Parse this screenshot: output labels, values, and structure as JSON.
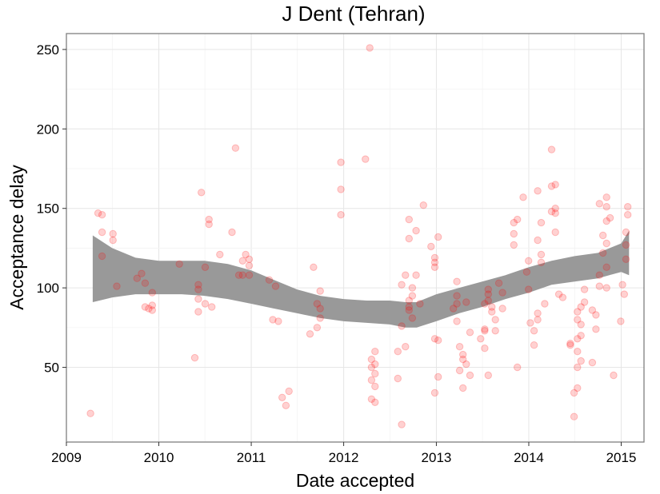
{
  "chart_data": {
    "type": "scatter",
    "title": "J Dent (Tehran)",
    "xlabel": "Date accepted",
    "ylabel": "Acceptance delay",
    "xlim": [
      "2009-01-01",
      "2015-04-01"
    ],
    "ylim": [
      3,
      260
    ],
    "x_ticks": [
      "2009",
      "2010",
      "2011",
      "2012",
      "2013",
      "2014",
      "2015"
    ],
    "y_ticks": [
      "50",
      "100",
      "150",
      "200",
      "250"
    ],
    "grid": true,
    "point_color": "#ff0000",
    "band_color": "#999999",
    "points": [
      {
        "x": "2009-04-06",
        "y": 21
      },
      {
        "x": "2009-05-06",
        "y": 147
      },
      {
        "x": "2009-05-22",
        "y": 146
      },
      {
        "x": "2009-05-22",
        "y": 135
      },
      {
        "x": "2009-05-22",
        "y": 120
      },
      {
        "x": "2009-07-04",
        "y": 134
      },
      {
        "x": "2009-07-04",
        "y": 130
      },
      {
        "x": "2009-07-19",
        "y": 101
      },
      {
        "x": "2009-10-07",
        "y": 106
      },
      {
        "x": "2009-10-25",
        "y": 109
      },
      {
        "x": "2009-11-08",
        "y": 103
      },
      {
        "x": "2009-11-08",
        "y": 88
      },
      {
        "x": "2009-11-22",
        "y": 87
      },
      {
        "x": "2009-12-06",
        "y": 89
      },
      {
        "x": "2009-12-06",
        "y": 86
      },
      {
        "x": "2009-12-06",
        "y": 97
      },
      {
        "x": "2010-03-23",
        "y": 115
      },
      {
        "x": "2010-05-23",
        "y": 56
      },
      {
        "x": "2010-06-06",
        "y": 102
      },
      {
        "x": "2010-06-06",
        "y": 99
      },
      {
        "x": "2010-06-06",
        "y": 93
      },
      {
        "x": "2010-06-06",
        "y": 85
      },
      {
        "x": "2010-06-18",
        "y": 160
      },
      {
        "x": "2010-07-03",
        "y": 90
      },
      {
        "x": "2010-07-03",
        "y": 113
      },
      {
        "x": "2010-07-18",
        "y": 143
      },
      {
        "x": "2010-07-18",
        "y": 140
      },
      {
        "x": "2010-07-29",
        "y": 88
      },
      {
        "x": "2010-08-30",
        "y": 121
      },
      {
        "x": "2010-10-17",
        "y": 135
      },
      {
        "x": "2010-10-31",
        "y": 188
      },
      {
        "x": "2010-11-13",
        "y": 108
      },
      {
        "x": "2010-11-28",
        "y": 117
      },
      {
        "x": "2010-11-28",
        "y": 108
      },
      {
        "x": "2010-12-10",
        "y": 121
      },
      {
        "x": "2010-12-24",
        "y": 114
      },
      {
        "x": "2010-12-24",
        "y": 108
      },
      {
        "x": "2010-12-24",
        "y": 118
      },
      {
        "x": "2011-03-13",
        "y": 105
      },
      {
        "x": "2011-03-27",
        "y": 80
      },
      {
        "x": "2011-04-07",
        "y": 101
      },
      {
        "x": "2011-04-18",
        "y": 79
      },
      {
        "x": "2011-05-03",
        "y": 31
      },
      {
        "x": "2011-05-18",
        "y": 26
      },
      {
        "x": "2011-05-30",
        "y": 35
      },
      {
        "x": "2011-08-21",
        "y": 71
      },
      {
        "x": "2011-09-04",
        "y": 113
      },
      {
        "x": "2011-09-18",
        "y": 90
      },
      {
        "x": "2011-09-18",
        "y": 75
      },
      {
        "x": "2011-09-30",
        "y": 87
      },
      {
        "x": "2011-09-30",
        "y": 98
      },
      {
        "x": "2011-09-30",
        "y": 81
      },
      {
        "x": "2011-12-21",
        "y": 179
      },
      {
        "x": "2011-12-21",
        "y": 162
      },
      {
        "x": "2011-12-21",
        "y": 146
      },
      {
        "x": "2012-03-27",
        "y": 181
      },
      {
        "x": "2012-04-13",
        "y": 251
      },
      {
        "x": "2012-04-20",
        "y": 55
      },
      {
        "x": "2012-04-20",
        "y": 50
      },
      {
        "x": "2012-04-20",
        "y": 42
      },
      {
        "x": "2012-04-20",
        "y": 30
      },
      {
        "x": "2012-05-04",
        "y": 60
      },
      {
        "x": "2012-05-04",
        "y": 52
      },
      {
        "x": "2012-05-04",
        "y": 46
      },
      {
        "x": "2012-05-04",
        "y": 38
      },
      {
        "x": "2012-05-04",
        "y": 28
      },
      {
        "x": "2012-08-02",
        "y": 60
      },
      {
        "x": "2012-08-02",
        "y": 43
      },
      {
        "x": "2012-08-17",
        "y": 14
      },
      {
        "x": "2012-08-17",
        "y": 76
      },
      {
        "x": "2012-08-17",
        "y": 102
      },
      {
        "x": "2012-09-01",
        "y": 63
      },
      {
        "x": "2012-09-01",
        "y": 108
      },
      {
        "x": "2012-09-15",
        "y": 143
      },
      {
        "x": "2012-09-15",
        "y": 131
      },
      {
        "x": "2012-09-15",
        "y": 92
      },
      {
        "x": "2012-09-15",
        "y": 88
      },
      {
        "x": "2012-09-15",
        "y": 86
      },
      {
        "x": "2012-09-28",
        "y": 100
      },
      {
        "x": "2012-09-28",
        "y": 95
      },
      {
        "x": "2012-09-28",
        "y": 81
      },
      {
        "x": "2012-10-13",
        "y": 108
      },
      {
        "x": "2012-10-13",
        "y": 136
      },
      {
        "x": "2012-10-28",
        "y": 90
      },
      {
        "x": "2012-11-11",
        "y": 152
      },
      {
        "x": "2012-12-11",
        "y": 126
      },
      {
        "x": "2012-12-26",
        "y": 119
      },
      {
        "x": "2012-12-26",
        "y": 116
      },
      {
        "x": "2012-12-26",
        "y": 113
      },
      {
        "x": "2012-12-26",
        "y": 68
      },
      {
        "x": "2012-12-26",
        "y": 34
      },
      {
        "x": "2013-01-08",
        "y": 44
      },
      {
        "x": "2013-01-08",
        "y": 67
      },
      {
        "x": "2013-01-08",
        "y": 132
      },
      {
        "x": "2013-03-09",
        "y": 87
      },
      {
        "x": "2013-03-23",
        "y": 104
      },
      {
        "x": "2013-03-23",
        "y": 95
      },
      {
        "x": "2013-03-23",
        "y": 90
      },
      {
        "x": "2013-03-23",
        "y": 79
      },
      {
        "x": "2013-04-03",
        "y": 63
      },
      {
        "x": "2013-04-03",
        "y": 48
      },
      {
        "x": "2013-04-16",
        "y": 58
      },
      {
        "x": "2013-04-16",
        "y": 55
      },
      {
        "x": "2013-04-16",
        "y": 37
      },
      {
        "x": "2013-04-29",
        "y": 91
      },
      {
        "x": "2013-04-29",
        "y": 52
      },
      {
        "x": "2013-05-14",
        "y": 45
      },
      {
        "x": "2013-05-14",
        "y": 72
      },
      {
        "x": "2013-06-25",
        "y": 68
      },
      {
        "x": "2013-07-11",
        "y": 62
      },
      {
        "x": "2013-07-11",
        "y": 90
      },
      {
        "x": "2013-07-11",
        "y": 74
      },
      {
        "x": "2013-07-11",
        "y": 73
      },
      {
        "x": "2013-07-25",
        "y": 45
      },
      {
        "x": "2013-07-25",
        "y": 99
      },
      {
        "x": "2013-07-25",
        "y": 96
      },
      {
        "x": "2013-07-25",
        "y": 92
      },
      {
        "x": "2013-08-08",
        "y": 88
      },
      {
        "x": "2013-08-08",
        "y": 85
      },
      {
        "x": "2013-08-22",
        "y": 80
      },
      {
        "x": "2013-08-22",
        "y": 73
      },
      {
        "x": "2013-09-05",
        "y": 103
      },
      {
        "x": "2013-09-19",
        "y": 97
      },
      {
        "x": "2013-09-19",
        "y": 87
      },
      {
        "x": "2013-11-03",
        "y": 127
      },
      {
        "x": "2013-11-03",
        "y": 134
      },
      {
        "x": "2013-11-03",
        "y": 141
      },
      {
        "x": "2013-11-17",
        "y": 50
      },
      {
        "x": "2013-11-17",
        "y": 143
      },
      {
        "x": "2013-12-10",
        "y": 157
      },
      {
        "x": "2013-12-24",
        "y": 110
      },
      {
        "x": "2013-12-31",
        "y": 117
      },
      {
        "x": "2013-12-31",
        "y": 99
      },
      {
        "x": "2014-01-07",
        "y": 78
      },
      {
        "x": "2014-01-22",
        "y": 73
      },
      {
        "x": "2014-01-22",
        "y": 64
      },
      {
        "x": "2014-02-05",
        "y": 161
      },
      {
        "x": "2014-02-05",
        "y": 130
      },
      {
        "x": "2014-02-05",
        "y": 84
      },
      {
        "x": "2014-02-05",
        "y": 80
      },
      {
        "x": "2014-02-19",
        "y": 141
      },
      {
        "x": "2014-02-19",
        "y": 121
      },
      {
        "x": "2014-02-19",
        "y": 116
      },
      {
        "x": "2014-03-05",
        "y": 90
      },
      {
        "x": "2014-04-01",
        "y": 187
      },
      {
        "x": "2014-04-01",
        "y": 164
      },
      {
        "x": "2014-04-01",
        "y": 148
      },
      {
        "x": "2014-04-16",
        "y": 165
      },
      {
        "x": "2014-04-16",
        "y": 150
      },
      {
        "x": "2014-04-16",
        "y": 147
      },
      {
        "x": "2014-04-16",
        "y": 135
      },
      {
        "x": "2014-04-30",
        "y": 96
      },
      {
        "x": "2014-05-15",
        "y": 94
      },
      {
        "x": "2014-06-14",
        "y": 65
      },
      {
        "x": "2014-06-14",
        "y": 64
      },
      {
        "x": "2014-06-29",
        "y": 34
      },
      {
        "x": "2014-06-29",
        "y": 19
      },
      {
        "x": "2014-07-12",
        "y": 85
      },
      {
        "x": "2014-07-12",
        "y": 80
      },
      {
        "x": "2014-07-12",
        "y": 68
      },
      {
        "x": "2014-07-12",
        "y": 60
      },
      {
        "x": "2014-07-12",
        "y": 50
      },
      {
        "x": "2014-07-12",
        "y": 37
      },
      {
        "x": "2014-07-26",
        "y": 88
      },
      {
        "x": "2014-07-26",
        "y": 77
      },
      {
        "x": "2014-07-26",
        "y": 70
      },
      {
        "x": "2014-07-26",
        "y": 54
      },
      {
        "x": "2014-08-09",
        "y": 99
      },
      {
        "x": "2014-08-09",
        "y": 91
      },
      {
        "x": "2014-09-09",
        "y": 86
      },
      {
        "x": "2014-09-09",
        "y": 53
      },
      {
        "x": "2014-09-23",
        "y": 83
      },
      {
        "x": "2014-09-23",
        "y": 74
      },
      {
        "x": "2014-10-07",
        "y": 153
      },
      {
        "x": "2014-10-07",
        "y": 108
      },
      {
        "x": "2014-10-07",
        "y": 101
      },
      {
        "x": "2014-10-21",
        "y": 133
      },
      {
        "x": "2014-10-21",
        "y": 122
      },
      {
        "x": "2014-11-04",
        "y": 157
      },
      {
        "x": "2014-11-04",
        "y": 151
      },
      {
        "x": "2014-11-04",
        "y": 142
      },
      {
        "x": "2014-11-04",
        "y": 128
      },
      {
        "x": "2014-11-04",
        "y": 113
      },
      {
        "x": "2014-11-04",
        "y": 100
      },
      {
        "x": "2014-11-18",
        "y": 144
      },
      {
        "x": "2014-12-02",
        "y": 45
      },
      {
        "x": "2014-12-30",
        "y": 79
      },
      {
        "x": "2015-01-06",
        "y": 102
      },
      {
        "x": "2015-01-13",
        "y": 96
      },
      {
        "x": "2015-01-20",
        "y": 135
      },
      {
        "x": "2015-01-20",
        "y": 127
      },
      {
        "x": "2015-01-20",
        "y": 118
      },
      {
        "x": "2015-01-27",
        "y": 151
      },
      {
        "x": "2015-01-27",
        "y": 146
      }
    ],
    "smooth_band": {
      "x": [
        "2009-04-15",
        "2009-07-01",
        "2009-10-01",
        "2010-01-01",
        "2010-04-01",
        "2010-07-01",
        "2010-10-01",
        "2011-01-01",
        "2011-04-01",
        "2011-07-01",
        "2011-10-01",
        "2012-01-01",
        "2012-04-01",
        "2012-07-01",
        "2012-09-01",
        "2012-10-15",
        "2013-01-01",
        "2013-04-01",
        "2013-07-01",
        "2013-10-01",
        "2014-01-01",
        "2014-04-01",
        "2014-07-01",
        "2014-10-01",
        "2015-01-01",
        "2015-02-01"
      ],
      "upper": [
        133,
        125,
        119,
        117,
        117,
        117,
        115,
        111,
        105,
        99,
        95,
        93,
        92,
        92,
        91,
        91,
        96,
        100,
        104,
        108,
        113,
        117,
        120,
        122,
        128,
        136
      ],
      "lower": [
        91,
        94,
        96,
        96,
        96,
        95,
        93,
        90,
        87,
        84,
        81,
        79,
        78,
        77,
        75,
        75,
        79,
        84,
        88,
        93,
        97,
        102,
        104,
        106,
        110,
        108
      ]
    }
  }
}
